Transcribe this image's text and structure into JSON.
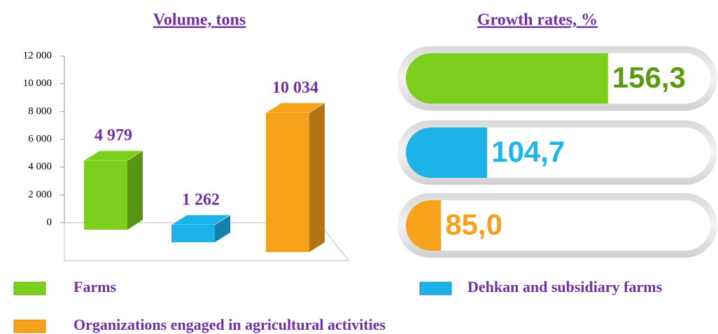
{
  "chart_data": [
    {
      "type": "bar3d",
      "title": "Volume, tons",
      "categories": [
        "Farms",
        "Dehkan and subsidiary farms",
        "Organizations engaged in agricultural activities"
      ],
      "values": [
        4979,
        1262,
        10034
      ],
      "value_labels": [
        "4 979",
        "1 262",
        "10 034"
      ],
      "colors": [
        "#7ccf1c",
        "#1eb3e8",
        "#f7a21b"
      ],
      "ylim": [
        0,
        12000
      ],
      "yticks": [
        0,
        {
          "value": 2000,
          "label": "2 000"
        },
        {
          "value": 4000,
          "label": "4 000"
        },
        {
          "value": 6000,
          "label": "6 000"
        },
        {
          "value": 8000,
          "label": "8 000"
        },
        {
          "value": 10000,
          "label": "10 000"
        },
        {
          "value": 12000,
          "label": "12 000"
        }
      ]
    },
    {
      "type": "progress",
      "title": "Growth rates, %",
      "values": [
        156.3,
        104.7,
        85.0
      ],
      "value_labels": [
        "156,3",
        "104,7",
        "85,0"
      ],
      "colors": [
        "#7ccf1c",
        "#1eb3e8",
        "#f7a21b"
      ],
      "label_colors": [
        "#5a9a10",
        "#1fb5ea",
        "#f5a020"
      ],
      "xlim": [
        70,
        200
      ]
    }
  ]
}
